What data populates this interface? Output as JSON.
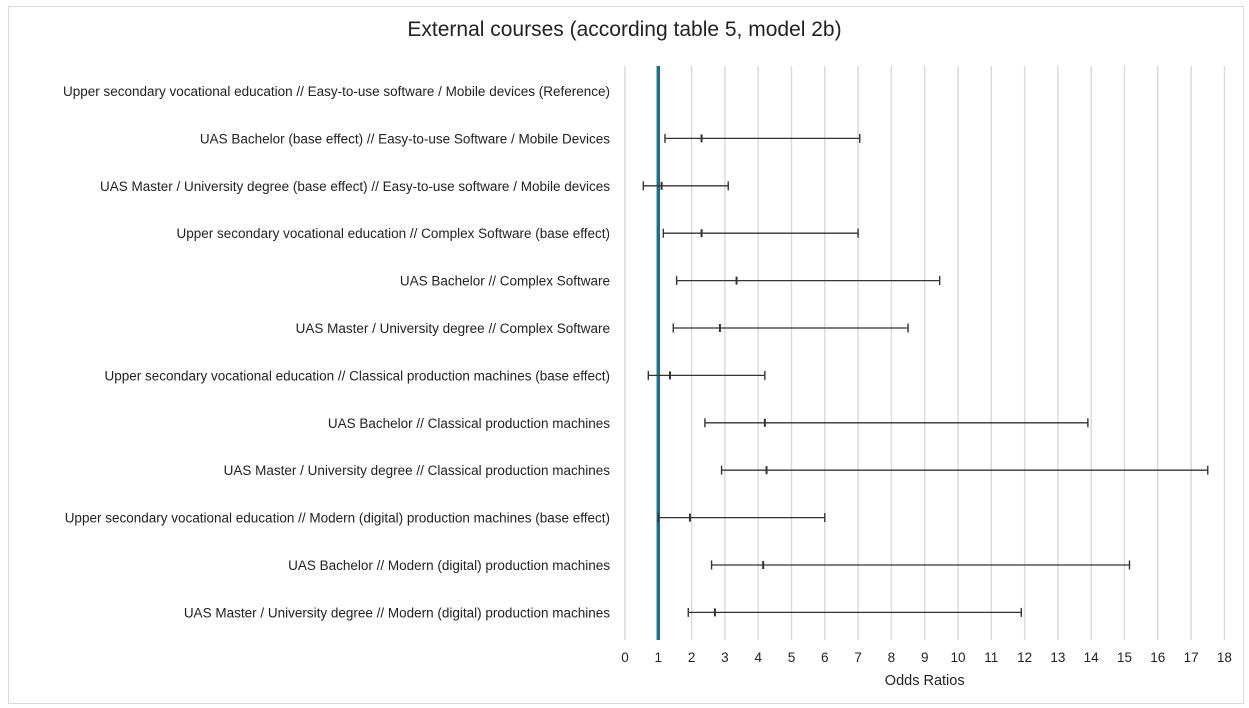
{
  "chart_data": {
    "type": "forest",
    "title": "External courses (according table 5, model 2b)",
    "xlabel": "Odds Ratios",
    "xlim": [
      0,
      18
    ],
    "x_ticks": [
      "0",
      "1",
      "2",
      "3",
      "4",
      "5",
      "6",
      "7",
      "8",
      "9",
      "10",
      "11",
      "12",
      "13",
      "14",
      "15",
      "16",
      "17",
      "18"
    ],
    "reference_line": 1,
    "reference_line_color": "#1f6f86",
    "grid": true,
    "categories": [
      "Upper secondary vocational education // Easy-to-use software / Mobile devices (Reference)",
      "UAS Bachelor (base effect) // Easy-to-use Software / Mobile Devices",
      "UAS Master / University degree (base effect) // Easy-to-use software / Mobile devices",
      "Upper secondary vocational education // Complex Software (base effect)",
      "UAS Bachelor // Complex Software",
      "UAS Master / University degree // Complex Software",
      "Upper secondary vocational education // Classical production machines (base effect)",
      "UAS Bachelor // Classical production machines",
      "UAS Master / University degree // Classical production machines",
      "Upper secondary vocational education // Modern (digital) production machines (base effect)",
      "UAS Bachelor // Modern (digital) production machines",
      "UAS Master / University degree // Modern (digital) production machines"
    ],
    "series": [
      {
        "odds_ratio": [
          null,
          2.3,
          1.1,
          2.3,
          3.35,
          2.85,
          1.35,
          4.2,
          4.25,
          1.95,
          4.15,
          2.7
        ],
        "ci_low": [
          null,
          1.2,
          0.55,
          1.15,
          1.55,
          1.45,
          0.7,
          2.4,
          2.9,
          1.0,
          2.6,
          1.9
        ],
        "ci_high": [
          null,
          7.05,
          3.1,
          7.0,
          9.45,
          8.5,
          4.2,
          13.9,
          17.5,
          6.0,
          15.15,
          11.9
        ]
      }
    ]
  }
}
